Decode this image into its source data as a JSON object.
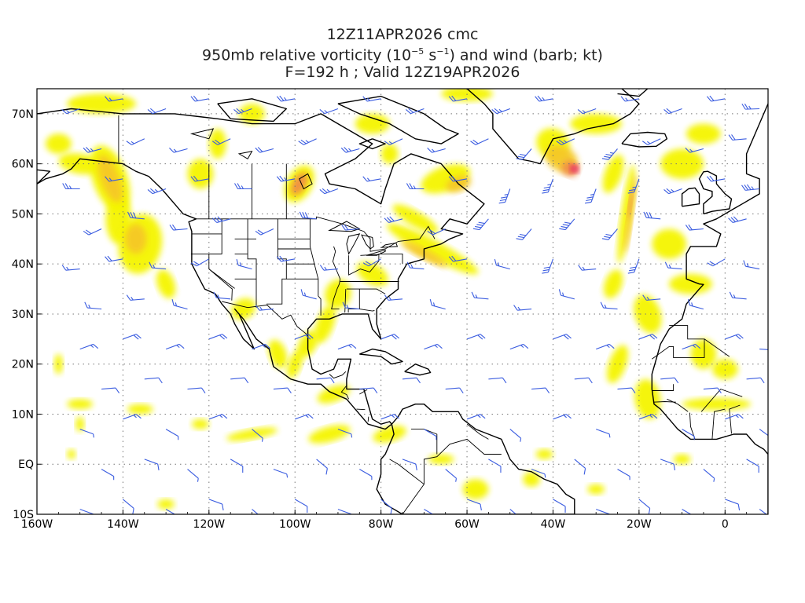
{
  "title": {
    "line1": "12Z11APR2026 cmc",
    "line2_prefix": "950mb relative vorticity (10",
    "line2_exp1": "−5",
    "line2_mid": " s",
    "line2_exp2": "−1",
    "line2_suffix": ") and wind (barb; kt)",
    "line3": "F=192 h ; Valid 12Z19APR2026"
  },
  "map": {
    "lon_range": [
      -160,
      10
    ],
    "lat_range": [
      -10,
      75
    ],
    "lon_ticks": [
      {
        "value": -160,
        "label": "160W"
      },
      {
        "value": -140,
        "label": "140W"
      },
      {
        "value": -120,
        "label": "120W"
      },
      {
        "value": -100,
        "label": "100W"
      },
      {
        "value": -80,
        "label": "80W"
      },
      {
        "value": -60,
        "label": "60W"
      },
      {
        "value": -40,
        "label": "40W"
      },
      {
        "value": -20,
        "label": "20W"
      },
      {
        "value": 0,
        "label": "0"
      }
    ],
    "lat_ticks": [
      {
        "value": 70,
        "label": "70N"
      },
      {
        "value": 60,
        "label": "60N"
      },
      {
        "value": 50,
        "label": "50N"
      },
      {
        "value": 40,
        "label": "40N"
      },
      {
        "value": 30,
        "label": "30N"
      },
      {
        "value": 20,
        "label": "20N"
      },
      {
        "value": 10,
        "label": "10N"
      },
      {
        "value": 0,
        "label": "EQ"
      },
      {
        "value": -10,
        "label": "10S"
      }
    ],
    "grid": "dotted",
    "colors": {
      "shade_low": "#f5f500",
      "shade_mid": "#f5c828",
      "shade_high": "#f08c46",
      "shade_peak": "#e81f70",
      "barb": "#3a5ce0",
      "coast": "#000000"
    }
  }
}
